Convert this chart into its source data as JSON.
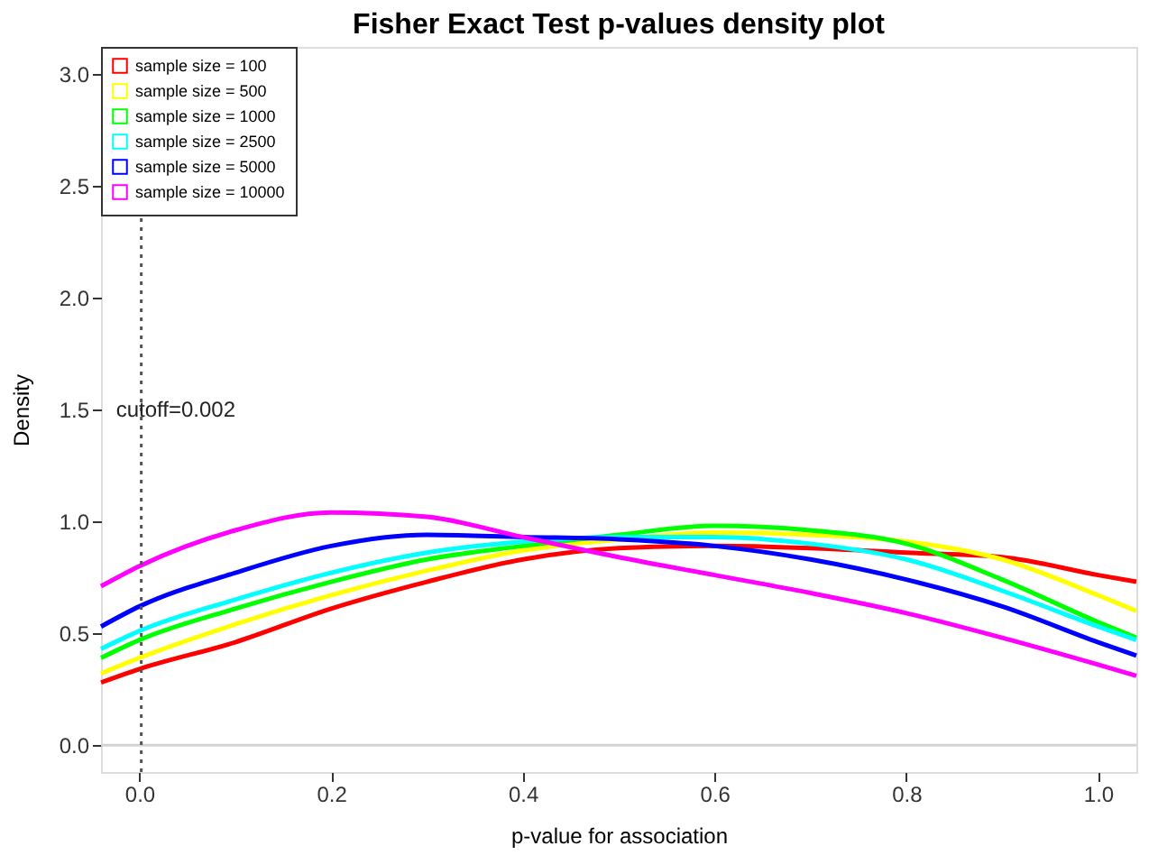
{
  "chart_data": {
    "type": "line",
    "title": "Fisher Exact Test p-values density plot",
    "xlabel": "p-value for association",
    "ylabel": "Density",
    "x": [
      -0.04,
      0,
      0.1,
      0.2,
      0.3,
      0.4,
      0.5,
      0.6,
      0.7,
      0.8,
      0.9,
      1.0,
      1.04
    ],
    "series": [
      {
        "name": "sample size = 100",
        "color": "#ff0000",
        "values": [
          0.28,
          0.34,
          0.46,
          0.61,
          0.73,
          0.83,
          0.88,
          0.89,
          0.88,
          0.86,
          0.84,
          0.76,
          0.73
        ]
      },
      {
        "name": "sample size = 500",
        "color": "#ffff00",
        "values": [
          0.32,
          0.39,
          0.54,
          0.67,
          0.78,
          0.87,
          0.92,
          0.95,
          0.94,
          0.91,
          0.83,
          0.67,
          0.6
        ]
      },
      {
        "name": "sample size = 1000",
        "color": "#00ff00",
        "values": [
          0.39,
          0.47,
          0.61,
          0.73,
          0.83,
          0.89,
          0.94,
          0.98,
          0.96,
          0.9,
          0.74,
          0.55,
          0.48
        ]
      },
      {
        "name": "sample size = 2500",
        "color": "#00ffff",
        "values": [
          0.43,
          0.51,
          0.65,
          0.77,
          0.86,
          0.91,
          0.93,
          0.93,
          0.9,
          0.83,
          0.69,
          0.53,
          0.47
        ]
      },
      {
        "name": "sample size = 5000",
        "color": "#0000ff",
        "values": [
          0.53,
          0.62,
          0.77,
          0.89,
          0.94,
          0.93,
          0.92,
          0.89,
          0.83,
          0.74,
          0.62,
          0.46,
          0.4
        ]
      },
      {
        "name": "sample size = 10000",
        "color": "#ff00ff",
        "values": [
          0.71,
          0.8,
          0.96,
          1.04,
          1.02,
          0.93,
          0.84,
          0.76,
          0.68,
          0.59,
          0.48,
          0.36,
          0.31
        ]
      }
    ],
    "xlim": [
      -0.04,
      1.04
    ],
    "ylim": [
      -0.12,
      3.12
    ],
    "xticks": [
      {
        "value": 0,
        "label": "0.0"
      },
      0.2,
      0.4,
      0.6,
      0.8,
      {
        "value": 1,
        "label": "1.0"
      }
    ],
    "yticks": [
      {
        "value": 0,
        "label": "0.0"
      },
      0.5,
      {
        "value": 1,
        "label": "1.0"
      },
      1.5,
      {
        "value": 2,
        "label": "2.0"
      },
      2.5,
      {
        "value": 3,
        "label": "3.0"
      }
    ],
    "ref_lines": [
      {
        "axis": "y",
        "value": 0,
        "color": "#d3d3d3",
        "line_style": "solid"
      },
      {
        "axis": "x",
        "value": 0.002,
        "color": "#555555",
        "line_style": "dotted"
      }
    ],
    "annotations": [
      {
        "text": "cutoff=0.002",
        "x": 0.002,
        "y": 1.5
      }
    ],
    "legend": "top left",
    "grid": false,
    "marker": "none",
    "line_style": "solid"
  }
}
